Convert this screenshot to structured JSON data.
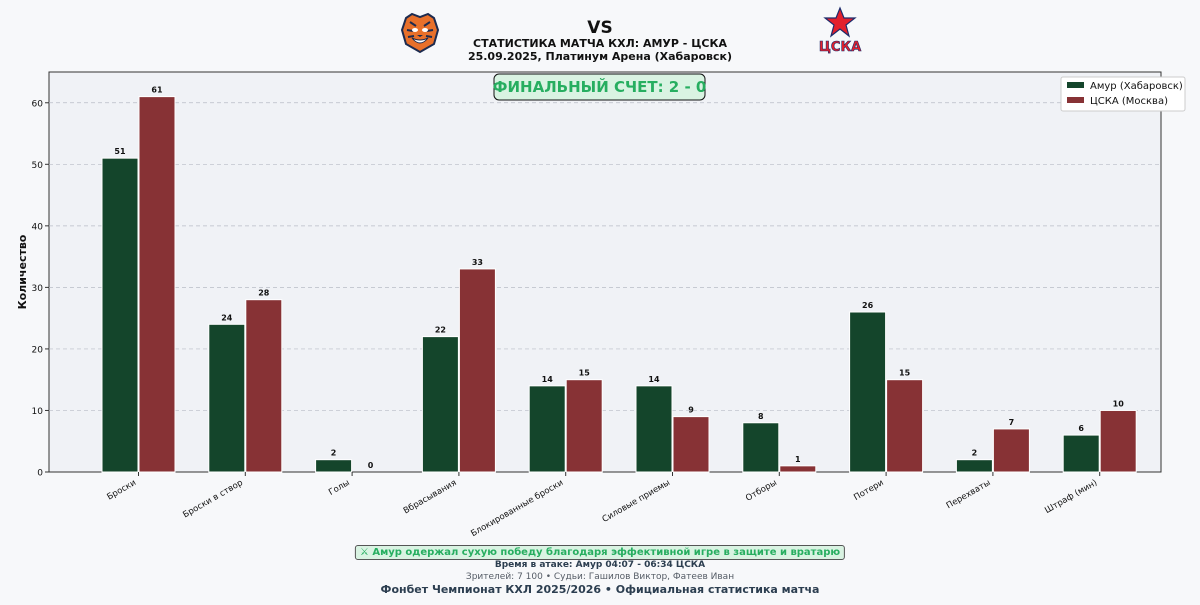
{
  "header": {
    "vs": "VS",
    "title": "СТАТИСТИКА МАТЧА КХЛ: АМУР - ЦСКА",
    "subtitle": "25.09.2025, Платинум Арена (Хабаровск)",
    "away_logo_text": "ЦСКА"
  },
  "score_label": "ФИНАЛЬНЫЙ СЧЕТ: 2 - 0",
  "chart_data": {
    "type": "bar",
    "categories": [
      "Броски",
      "Броски в створ",
      "Голы",
      "Вбрасывания",
      "Блокированные броски",
      "Силовые приемы",
      "Отборы",
      "Потери",
      "Перехваты",
      "Штраф (мин)"
    ],
    "series": [
      {
        "name": "Амур (Хабаровск)",
        "values": [
          51,
          24,
          2,
          22,
          14,
          14,
          8,
          26,
          2,
          6
        ],
        "color": "#14452b"
      },
      {
        "name": "ЦСКА (Москва)",
        "values": [
          61,
          28,
          0,
          33,
          15,
          9,
          1,
          15,
          7,
          10
        ],
        "color": "#873235"
      }
    ],
    "ylabel": "Количество",
    "xlabel": "",
    "ylim": [
      0,
      65
    ],
    "yticks": [
      0,
      10,
      20,
      30,
      40,
      50,
      60
    ],
    "grid": true,
    "legend": "top-right"
  },
  "footer": {
    "badge": "⚔ Амур одержал сухую победу благодаря эффективной игре в защите и вратарю",
    "attack_time": "Время в атаке: Амур 04:07 - 06:34 ЦСКА",
    "info": "Зрителей: 7 100 • Судьи: Гашилов Виктор, Фатеев Иван",
    "championship": "Фонбет Чемпионат КХЛ 2025/2026 • Официальная статистика матча"
  },
  "colors": {
    "accent_green": "#27ae60",
    "text_dark": "#2c3e50"
  }
}
